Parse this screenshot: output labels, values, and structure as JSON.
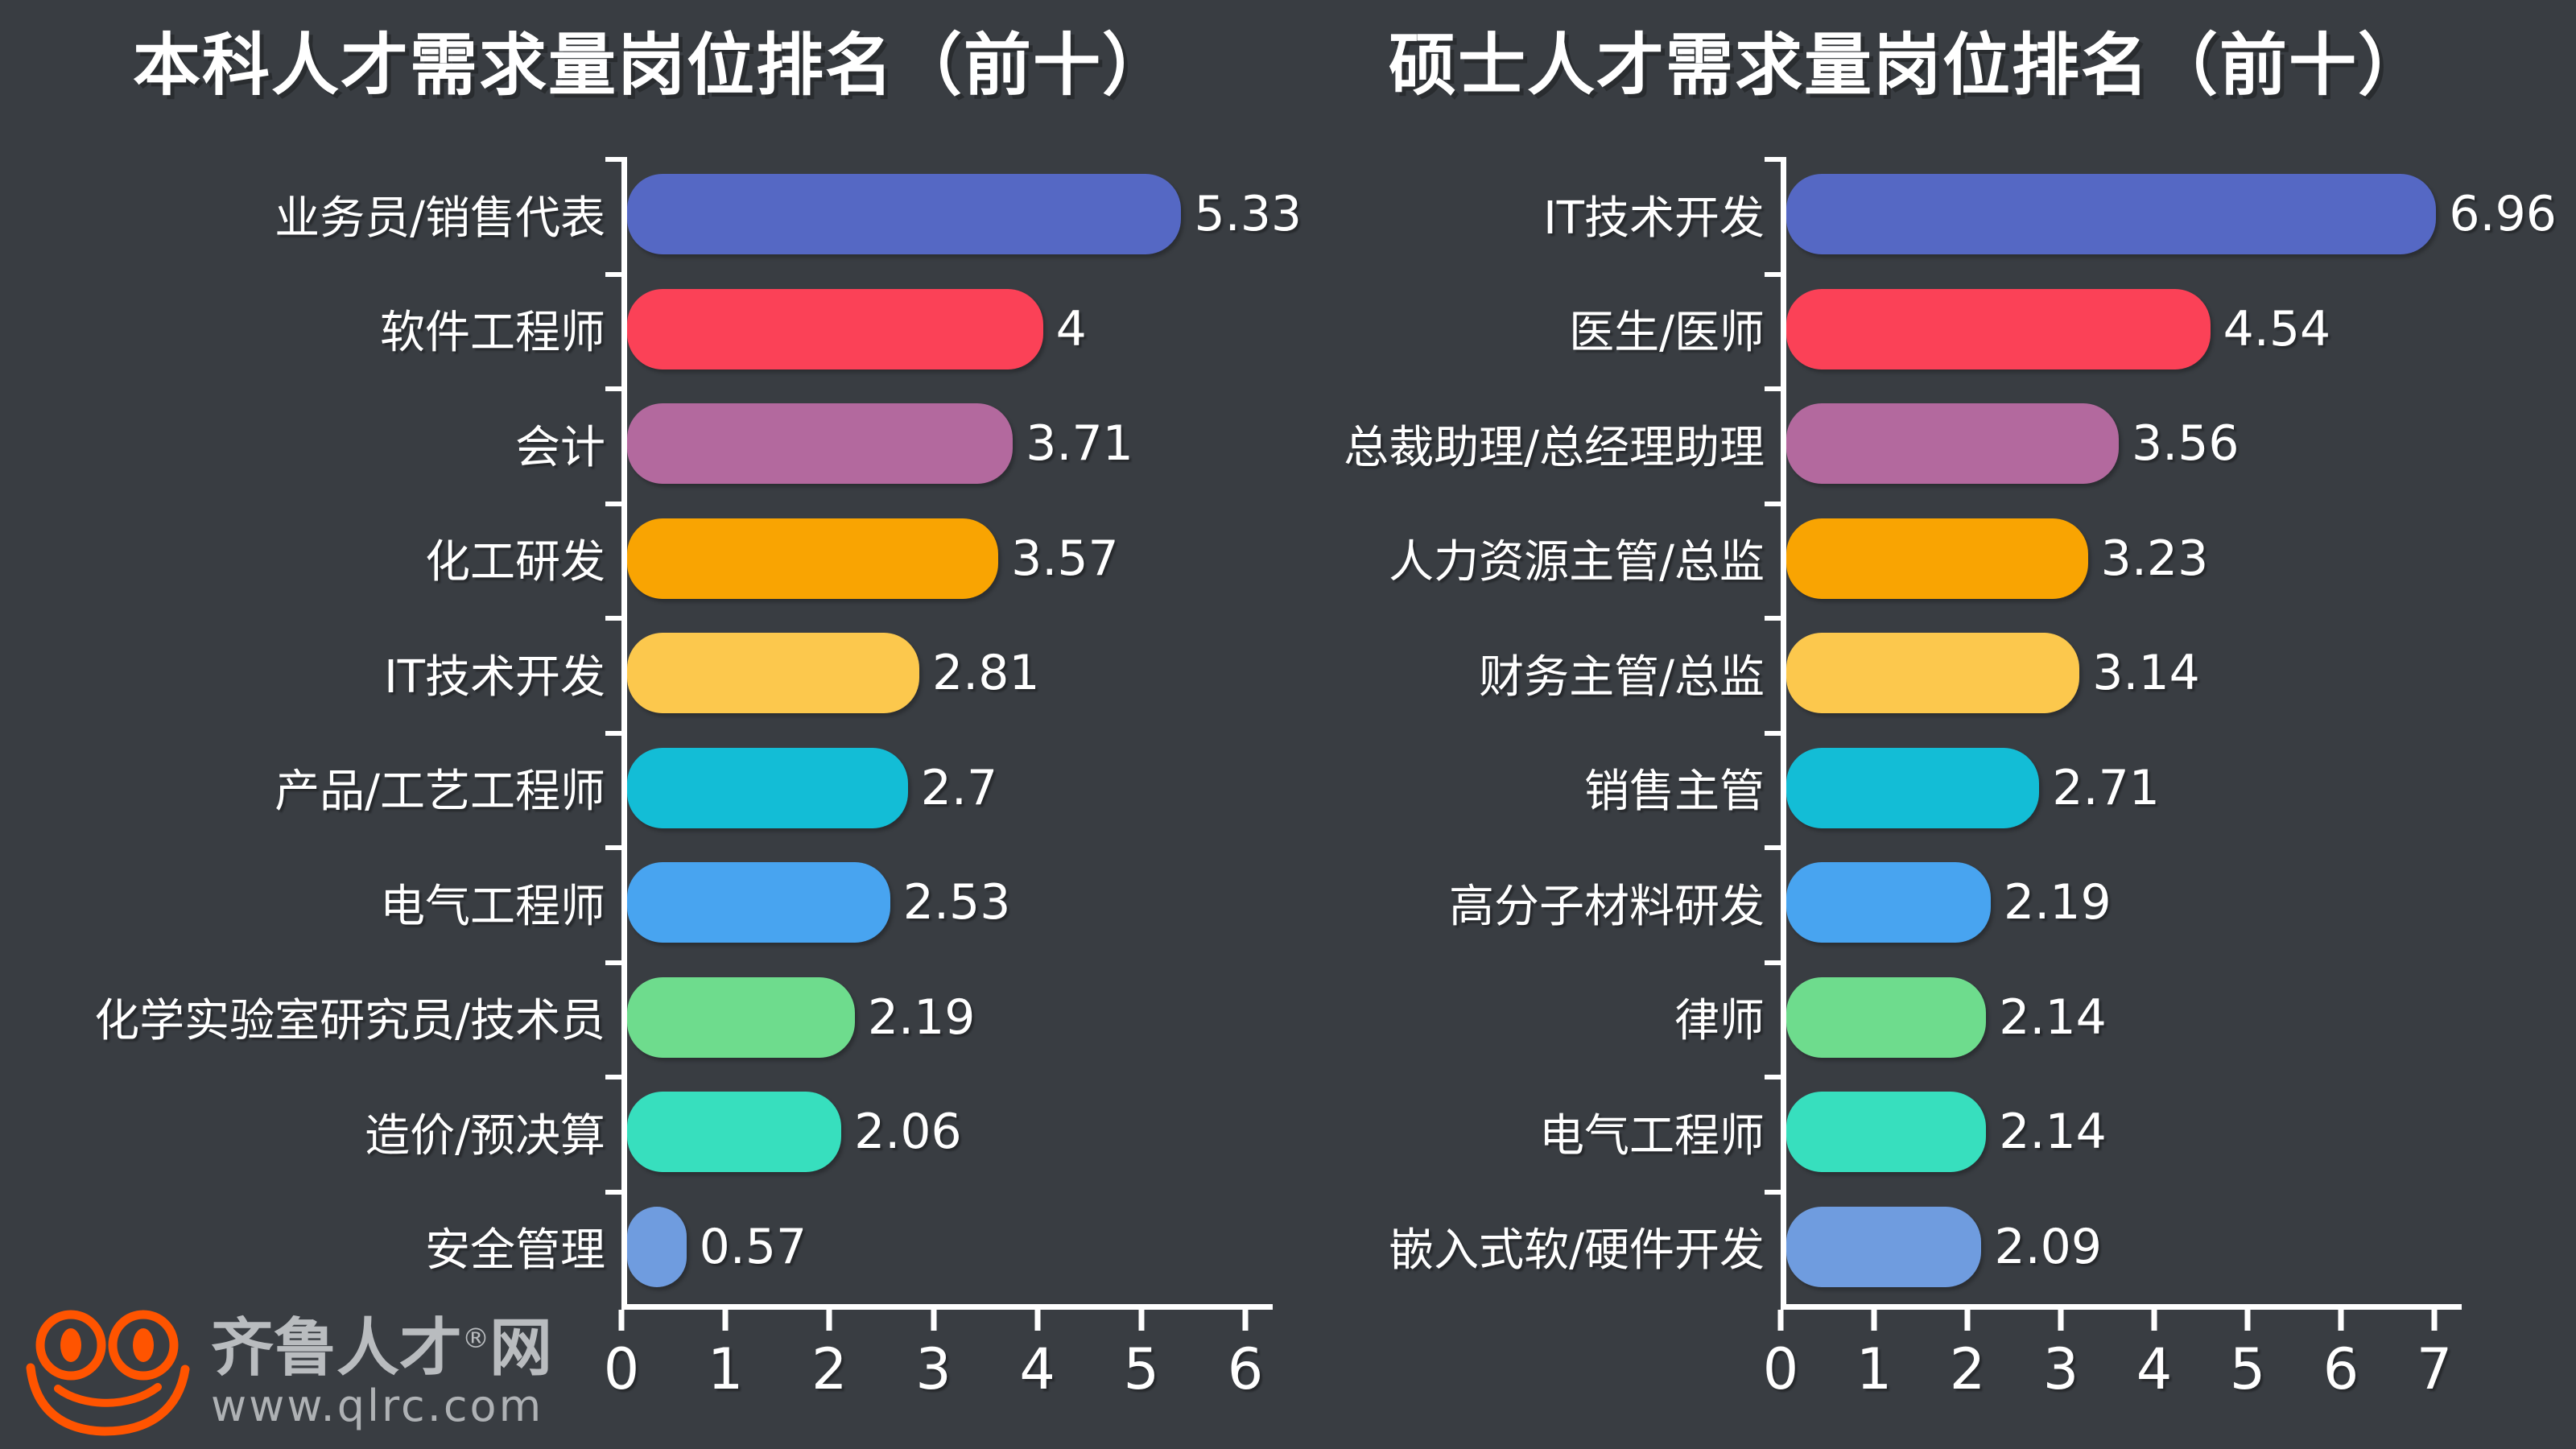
{
  "background_color": "#393d42",
  "chart_data": [
    {
      "type": "bar",
      "orientation": "horizontal",
      "title": "本科人才需求量岗位排名（前十）",
      "categories": [
        "业务员/销售代表",
        "软件工程师",
        "会计",
        "化工研发",
        "IT技术开发",
        "产品/工艺工程师",
        "电气工程师",
        "化学实验室研究员/技术员",
        "造价/预决算",
        "安全管理"
      ],
      "values": [
        5.33,
        4,
        3.71,
        3.57,
        2.81,
        2.7,
        2.53,
        2.19,
        2.06,
        0.57
      ],
      "value_labels": [
        "5.33",
        "4",
        "3.71",
        "3.57",
        "2.81",
        "2.7",
        "2.53",
        "2.19",
        "2.06",
        "0.57"
      ],
      "colors": [
        "#5568c4",
        "#fb4157",
        "#b3699e",
        "#f9a402",
        "#fcc84d",
        "#13bdd6",
        "#48a4f0",
        "#6edc8d",
        "#37dfbe",
        "#6f9cdf"
      ],
      "xlim": [
        0,
        6
      ],
      "x_ticks": [
        "0",
        "1",
        "2",
        "3",
        "4",
        "5",
        "6"
      ],
      "xlabel": "",
      "ylabel": "",
      "grid": false,
      "legend": false
    },
    {
      "type": "bar",
      "orientation": "horizontal",
      "title": "硕士人才需求量岗位排名（前十）",
      "categories": [
        "IT技术开发",
        "医生/医师",
        "总裁助理/总经理助理",
        "人力资源主管/总监",
        "财务主管/总监",
        "销售主管",
        "高分子材料研发",
        "律师",
        "电气工程师",
        "嵌入式软/硬件开发"
      ],
      "values": [
        6.96,
        4.54,
        3.56,
        3.23,
        3.14,
        2.71,
        2.19,
        2.14,
        2.14,
        2.09
      ],
      "value_labels": [
        "6.96",
        "4.54",
        "3.56",
        "3.23",
        "3.14",
        "2.71",
        "2.19",
        "2.14",
        "2.14",
        "2.09"
      ],
      "colors": [
        "#5568c4",
        "#fb4157",
        "#b3699e",
        "#f9a402",
        "#fcc84d",
        "#13bdd6",
        "#48a4f0",
        "#6edc8d",
        "#37dfbe",
        "#6f9cdf"
      ],
      "xlim": [
        0,
        7
      ],
      "x_ticks": [
        "0",
        "1",
        "2",
        "3",
        "4",
        "5",
        "6",
        "7"
      ],
      "xlabel": "",
      "ylabel": "",
      "grid": false,
      "legend": false
    }
  ],
  "footer": {
    "brand_name": "齐鲁人才",
    "brand_reg_mark": "®",
    "brand_suffix": "网",
    "url": "www.qlrc.com",
    "logo_color": "#ff5400",
    "text_color": "#b9bcbf"
  },
  "style_colors": {
    "background": "#393d42",
    "axis": "#ffffff",
    "text": "#ffffff"
  }
}
